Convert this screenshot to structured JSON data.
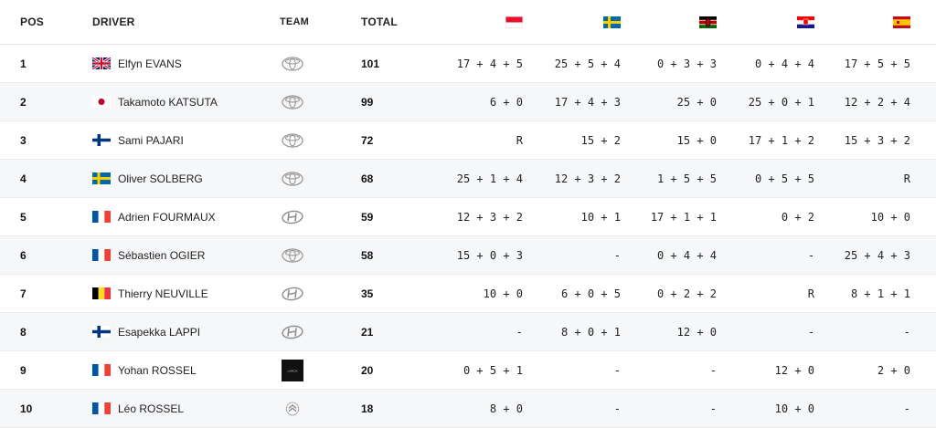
{
  "header": {
    "pos": "POS",
    "driver": "DRIVER",
    "team": "TEAM",
    "total": "TOTAL",
    "rally_flags": [
      "monaco",
      "sweden",
      "kenya",
      "croatia",
      "spain"
    ]
  },
  "rows": [
    {
      "pos": "1",
      "flag": "gb",
      "driver": "Elfyn EVANS",
      "team_logo": "toyota",
      "total": "101",
      "scores": [
        "17 + 4 + 5",
        "25 + 5 + 4",
        "0 + 3 + 3",
        "0 + 4 + 4",
        "17 + 5 + 5"
      ]
    },
    {
      "pos": "2",
      "flag": "jp",
      "driver": "Takamoto KATSUTA",
      "team_logo": "toyota",
      "total": "99",
      "scores": [
        "6 + 0",
        "17 + 4 + 3",
        "25 + 0",
        "25 + 0 + 1",
        "12 + 2 + 4"
      ]
    },
    {
      "pos": "3",
      "flag": "fi",
      "driver": "Sami PAJARI",
      "team_logo": "toyota",
      "total": "72",
      "scores": [
        "R",
        "15 + 2",
        "15 + 0",
        "17 + 1 + 2",
        "15 + 3 + 2"
      ]
    },
    {
      "pos": "4",
      "flag": "se",
      "driver": "Oliver SOLBERG",
      "team_logo": "toyota",
      "total": "68",
      "scores": [
        "25 + 1 + 4",
        "12 + 3 + 2",
        "1 + 5 + 5",
        "0 + 5 + 5",
        "R"
      ]
    },
    {
      "pos": "5",
      "flag": "fr",
      "driver": "Adrien FOURMAUX",
      "team_logo": "hyundai",
      "total": "59",
      "scores": [
        "12 + 3 + 2",
        "10 + 1",
        "17 + 1 + 1",
        "0 + 2",
        "10 + 0"
      ]
    },
    {
      "pos": "6",
      "flag": "fr",
      "driver": "Sébastien OGIER",
      "team_logo": "toyota",
      "total": "58",
      "scores": [
        "15 + 0 + 3",
        "-",
        "0 + 4 + 4",
        "-",
        "25 + 4 + 3"
      ]
    },
    {
      "pos": "7",
      "flag": "be",
      "driver": "Thierry NEUVILLE",
      "team_logo": "hyundai",
      "total": "35",
      "scores": [
        "10 + 0",
        "6 + 0 + 5",
        "0 + 2 + 2",
        "R",
        "8 + 1 + 1"
      ]
    },
    {
      "pos": "8",
      "flag": "fi",
      "driver": "Esapekka LAPPI",
      "team_logo": "hyundai",
      "total": "21",
      "scores": [
        "-",
        "8 + 0 + 1",
        "12 + 0",
        "-",
        "-"
      ]
    },
    {
      "pos": "9",
      "flag": "fr",
      "driver": "Yohan ROSSEL",
      "team_logo": "lancia",
      "total": "20",
      "scores": [
        "0 + 5 + 1",
        "-",
        "-",
        "12 + 0",
        "2 + 0"
      ]
    },
    {
      "pos": "10",
      "flag": "fr",
      "driver": "Léo ROSSEL",
      "team_logo": "citroen",
      "total": "18",
      "scores": [
        "8 + 0",
        "-",
        "-",
        "10 + 0",
        "-"
      ]
    }
  ]
}
